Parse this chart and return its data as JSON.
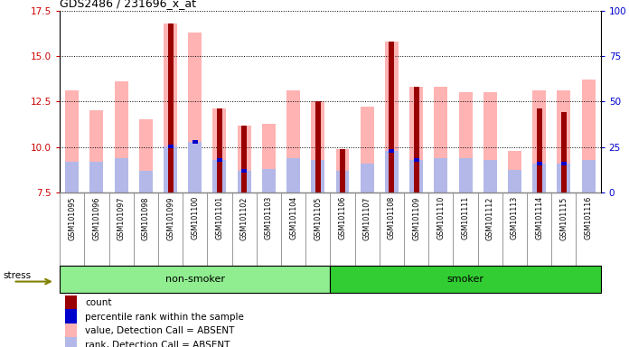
{
  "title": "GDS2486 / 231696_x_at",
  "samples": [
    "GSM101095",
    "GSM101096",
    "GSM101097",
    "GSM101098",
    "GSM101099",
    "GSM101100",
    "GSM101101",
    "GSM101102",
    "GSM101103",
    "GSM101104",
    "GSM101105",
    "GSM101106",
    "GSM101107",
    "GSM101108",
    "GSM101109",
    "GSM101110",
    "GSM101111",
    "GSM101112",
    "GSM101113",
    "GSM101114",
    "GSM101115",
    "GSM101116"
  ],
  "non_smoker_count": 11,
  "ylim_left": [
    7.5,
    17.5
  ],
  "ylim_right": [
    0,
    100
  ],
  "yticks_left": [
    7.5,
    10.0,
    12.5,
    15.0,
    17.5
  ],
  "yticks_right": [
    0,
    25,
    50,
    75,
    100
  ],
  "value_absent": [
    13.1,
    12.0,
    13.6,
    11.5,
    16.8,
    16.3,
    12.1,
    11.2,
    11.3,
    13.1,
    12.5,
    9.9,
    12.2,
    15.8,
    13.3,
    13.3,
    13.0,
    13.0,
    9.8,
    13.1,
    13.1,
    13.7
  ],
  "rank_absent": [
    9.2,
    9.2,
    9.4,
    8.7,
    10.05,
    10.3,
    9.3,
    8.7,
    8.8,
    9.4,
    9.3,
    8.7,
    9.1,
    9.8,
    9.3,
    9.4,
    9.4,
    9.3,
    8.75,
    9.1,
    9.1,
    9.3
  ],
  "count_val": [
    null,
    null,
    null,
    null,
    16.8,
    null,
    12.1,
    11.2,
    null,
    null,
    12.5,
    9.9,
    null,
    15.8,
    13.3,
    null,
    null,
    null,
    null,
    12.1,
    11.9,
    null
  ],
  "percentile_rank_val": [
    null,
    null,
    null,
    null,
    10.05,
    10.3,
    9.3,
    8.7,
    null,
    null,
    null,
    null,
    null,
    9.8,
    9.3,
    null,
    null,
    null,
    null,
    9.1,
    9.1,
    null
  ],
  "color_value_absent": "#ffb3b3",
  "color_rank_absent": "#b3b8e8",
  "color_count": "#990000",
  "color_percentile": "#0000cc",
  "non_smoker_color": "#90ee90",
  "smoker_color": "#32cd32",
  "ylabel_left_color": "#cc0000",
  "ylabel_right_color": "#0000cc",
  "grid_color": "#000000",
  "tick_bg_color": "#d3d3d3",
  "tick_border_color": "#888888"
}
